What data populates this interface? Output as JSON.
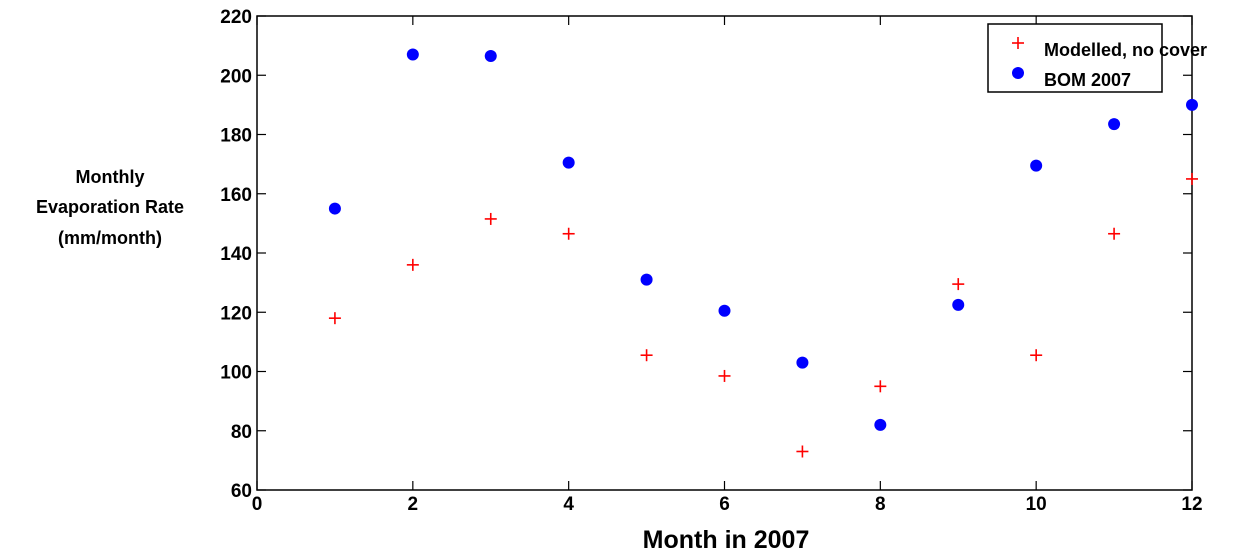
{
  "chart_data": {
    "type": "scatter",
    "xlabel": "Month in 2007",
    "ylabel_lines": [
      "Monthly",
      "Evaporation Rate",
      "(mm/month)"
    ],
    "xlim": [
      0,
      12
    ],
    "ylim": [
      60,
      220
    ],
    "xticks": [
      0,
      2,
      4,
      6,
      8,
      10,
      12
    ],
    "yticks": [
      60,
      80,
      100,
      120,
      140,
      160,
      180,
      200,
      220
    ],
    "grid": false,
    "legend_position": "top-right",
    "series": [
      {
        "name": "Modelled, no cover",
        "marker": "plus",
        "color": "#ff0000",
        "x": [
          1,
          2,
          3,
          4,
          5,
          6,
          7,
          8,
          9,
          10,
          11,
          12
        ],
        "y": [
          118,
          136,
          151.5,
          146.5,
          105.5,
          98.5,
          73,
          95,
          129.5,
          105.5,
          146.5,
          165
        ]
      },
      {
        "name": "BOM 2007",
        "marker": "circle",
        "color": "#0000ff",
        "x": [
          1,
          2,
          3,
          4,
          5,
          6,
          7,
          8,
          9,
          10,
          11,
          12
        ],
        "y": [
          155,
          207,
          206.5,
          170.5,
          131,
          120.5,
          103,
          82,
          122.5,
          169.5,
          183.5,
          190
        ]
      }
    ]
  }
}
